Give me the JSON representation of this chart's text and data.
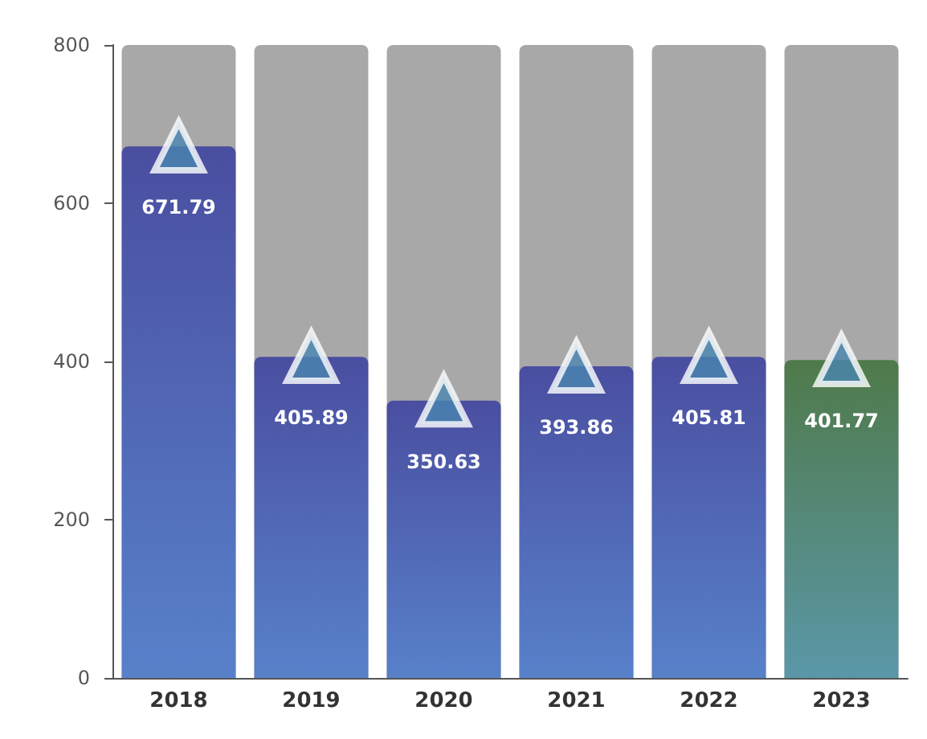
{
  "chart_data": {
    "type": "bar",
    "categories": [
      "2018",
      "2019",
      "2020",
      "2021",
      "2022",
      "2023"
    ],
    "series": [
      {
        "values": [
          671.79,
          405.89,
          350.63,
          393.86,
          405.81,
          401.77
        ],
        "value_labels": [
          "671.79",
          "405.89",
          "350.63",
          "393.86",
          "405.81",
          "401.77"
        ],
        "colors": [
          "#4a4ea0",
          "#4a4ea0",
          "#4a4ea0",
          "#4a4ea0",
          "#4a4ea0",
          "#4f7a4a"
        ]
      },
      {
        "type": "scatter",
        "values": [
          672,
          406,
          351,
          394,
          406,
          402
        ],
        "color": "#4a86b0"
      }
    ],
    "ylim": [
      0,
      800
    ],
    "yticks": [
      0,
      200,
      400,
      600,
      800
    ],
    "grid": false,
    "marker": "triangle"
  }
}
